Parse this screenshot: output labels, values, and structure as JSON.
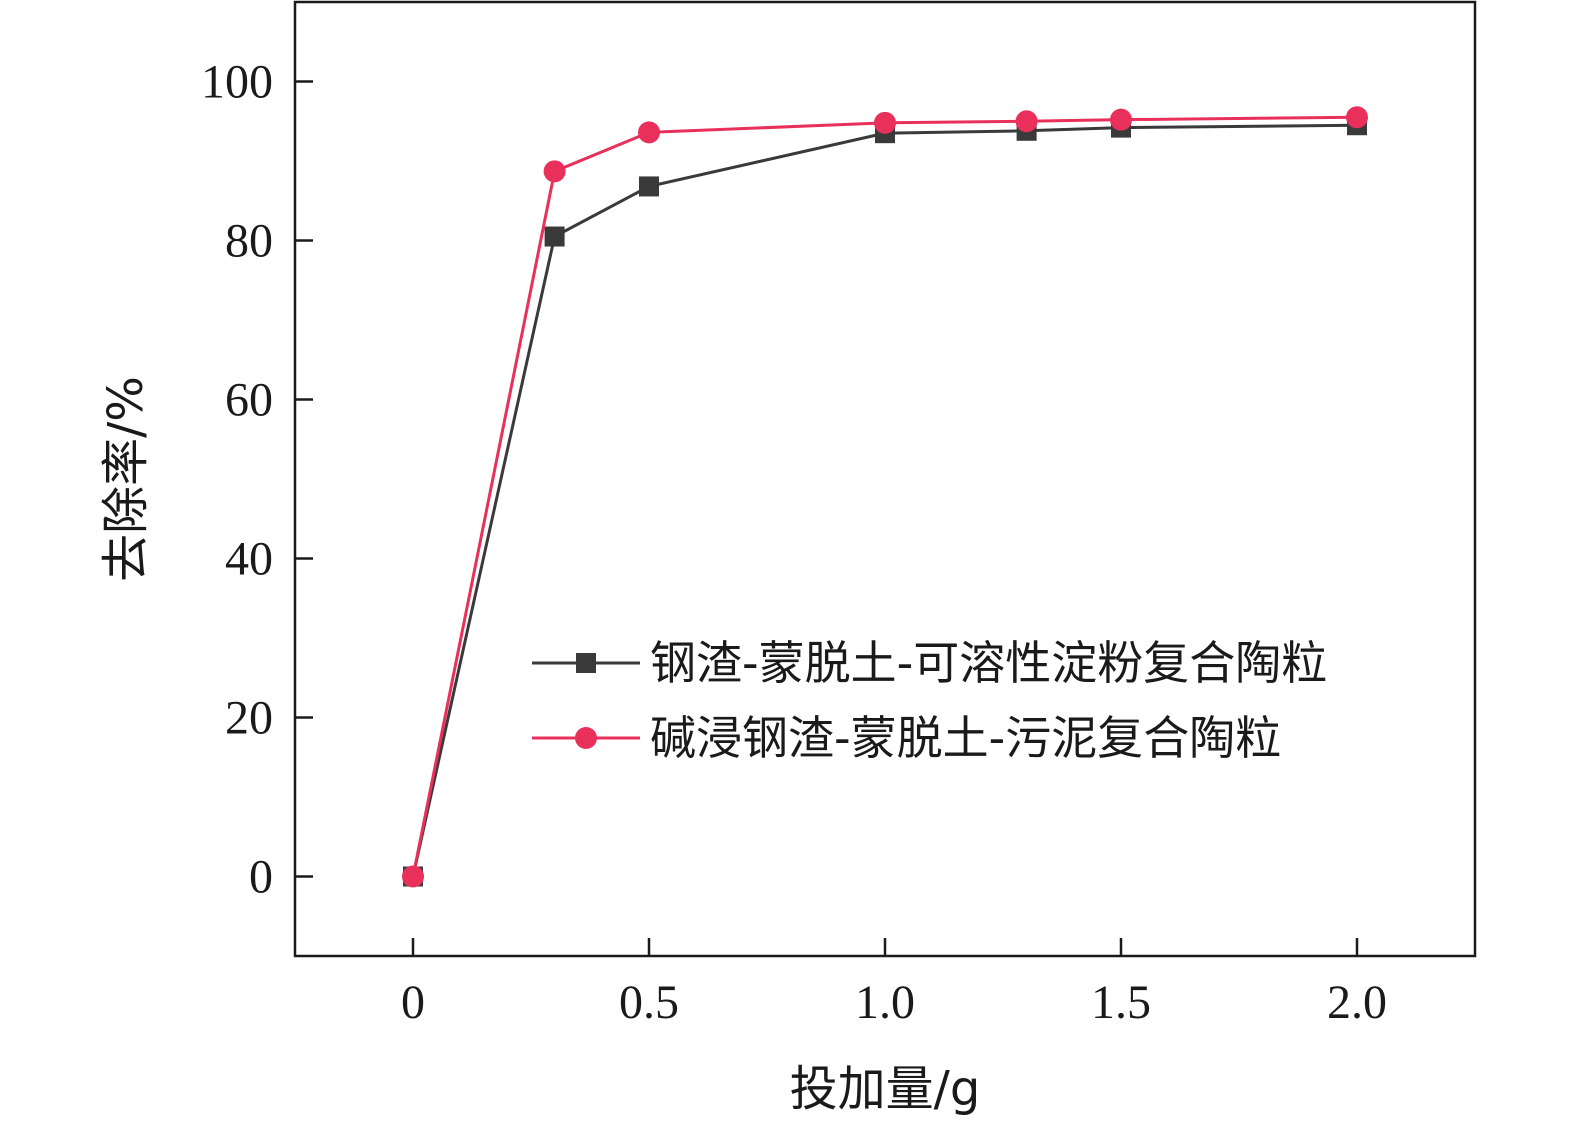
{
  "chart_data": {
    "type": "line",
    "xlabel": "投加量/g",
    "ylabel": "去除率/%",
    "xlim": [
      -0.25,
      2.25
    ],
    "ylim": [
      -10,
      110
    ],
    "x_ticks": [
      0,
      0.5,
      1.0,
      1.5,
      2.0
    ],
    "x_tick_labels": [
      "0",
      "0.5",
      "1.0",
      "1.5",
      "2.0"
    ],
    "y_ticks": [
      0,
      20,
      40,
      60,
      80,
      100
    ],
    "y_tick_labels": [
      "0",
      "20",
      "40",
      "60",
      "80",
      "100"
    ],
    "grid": false,
    "legend_position": "center-right",
    "series": [
      {
        "name": "钢渣-蒙脱土-可溶性淀粉复合陶粒",
        "marker": "square",
        "color": "#3a3a3a",
        "x": [
          0,
          0.3,
          0.5,
          1.0,
          1.3,
          1.5,
          2.0
        ],
        "y": [
          0,
          80.5,
          86.8,
          93.5,
          93.8,
          94.2,
          94.5
        ]
      },
      {
        "name": "碱浸钢渣-蒙脱土-污泥复合陶粒",
        "marker": "circle",
        "color": "#e8305a",
        "x": [
          0,
          0.3,
          0.5,
          1.0,
          1.3,
          1.5,
          2.0
        ],
        "y": [
          0,
          88.7,
          93.6,
          94.8,
          95.0,
          95.2,
          95.5
        ]
      }
    ]
  }
}
